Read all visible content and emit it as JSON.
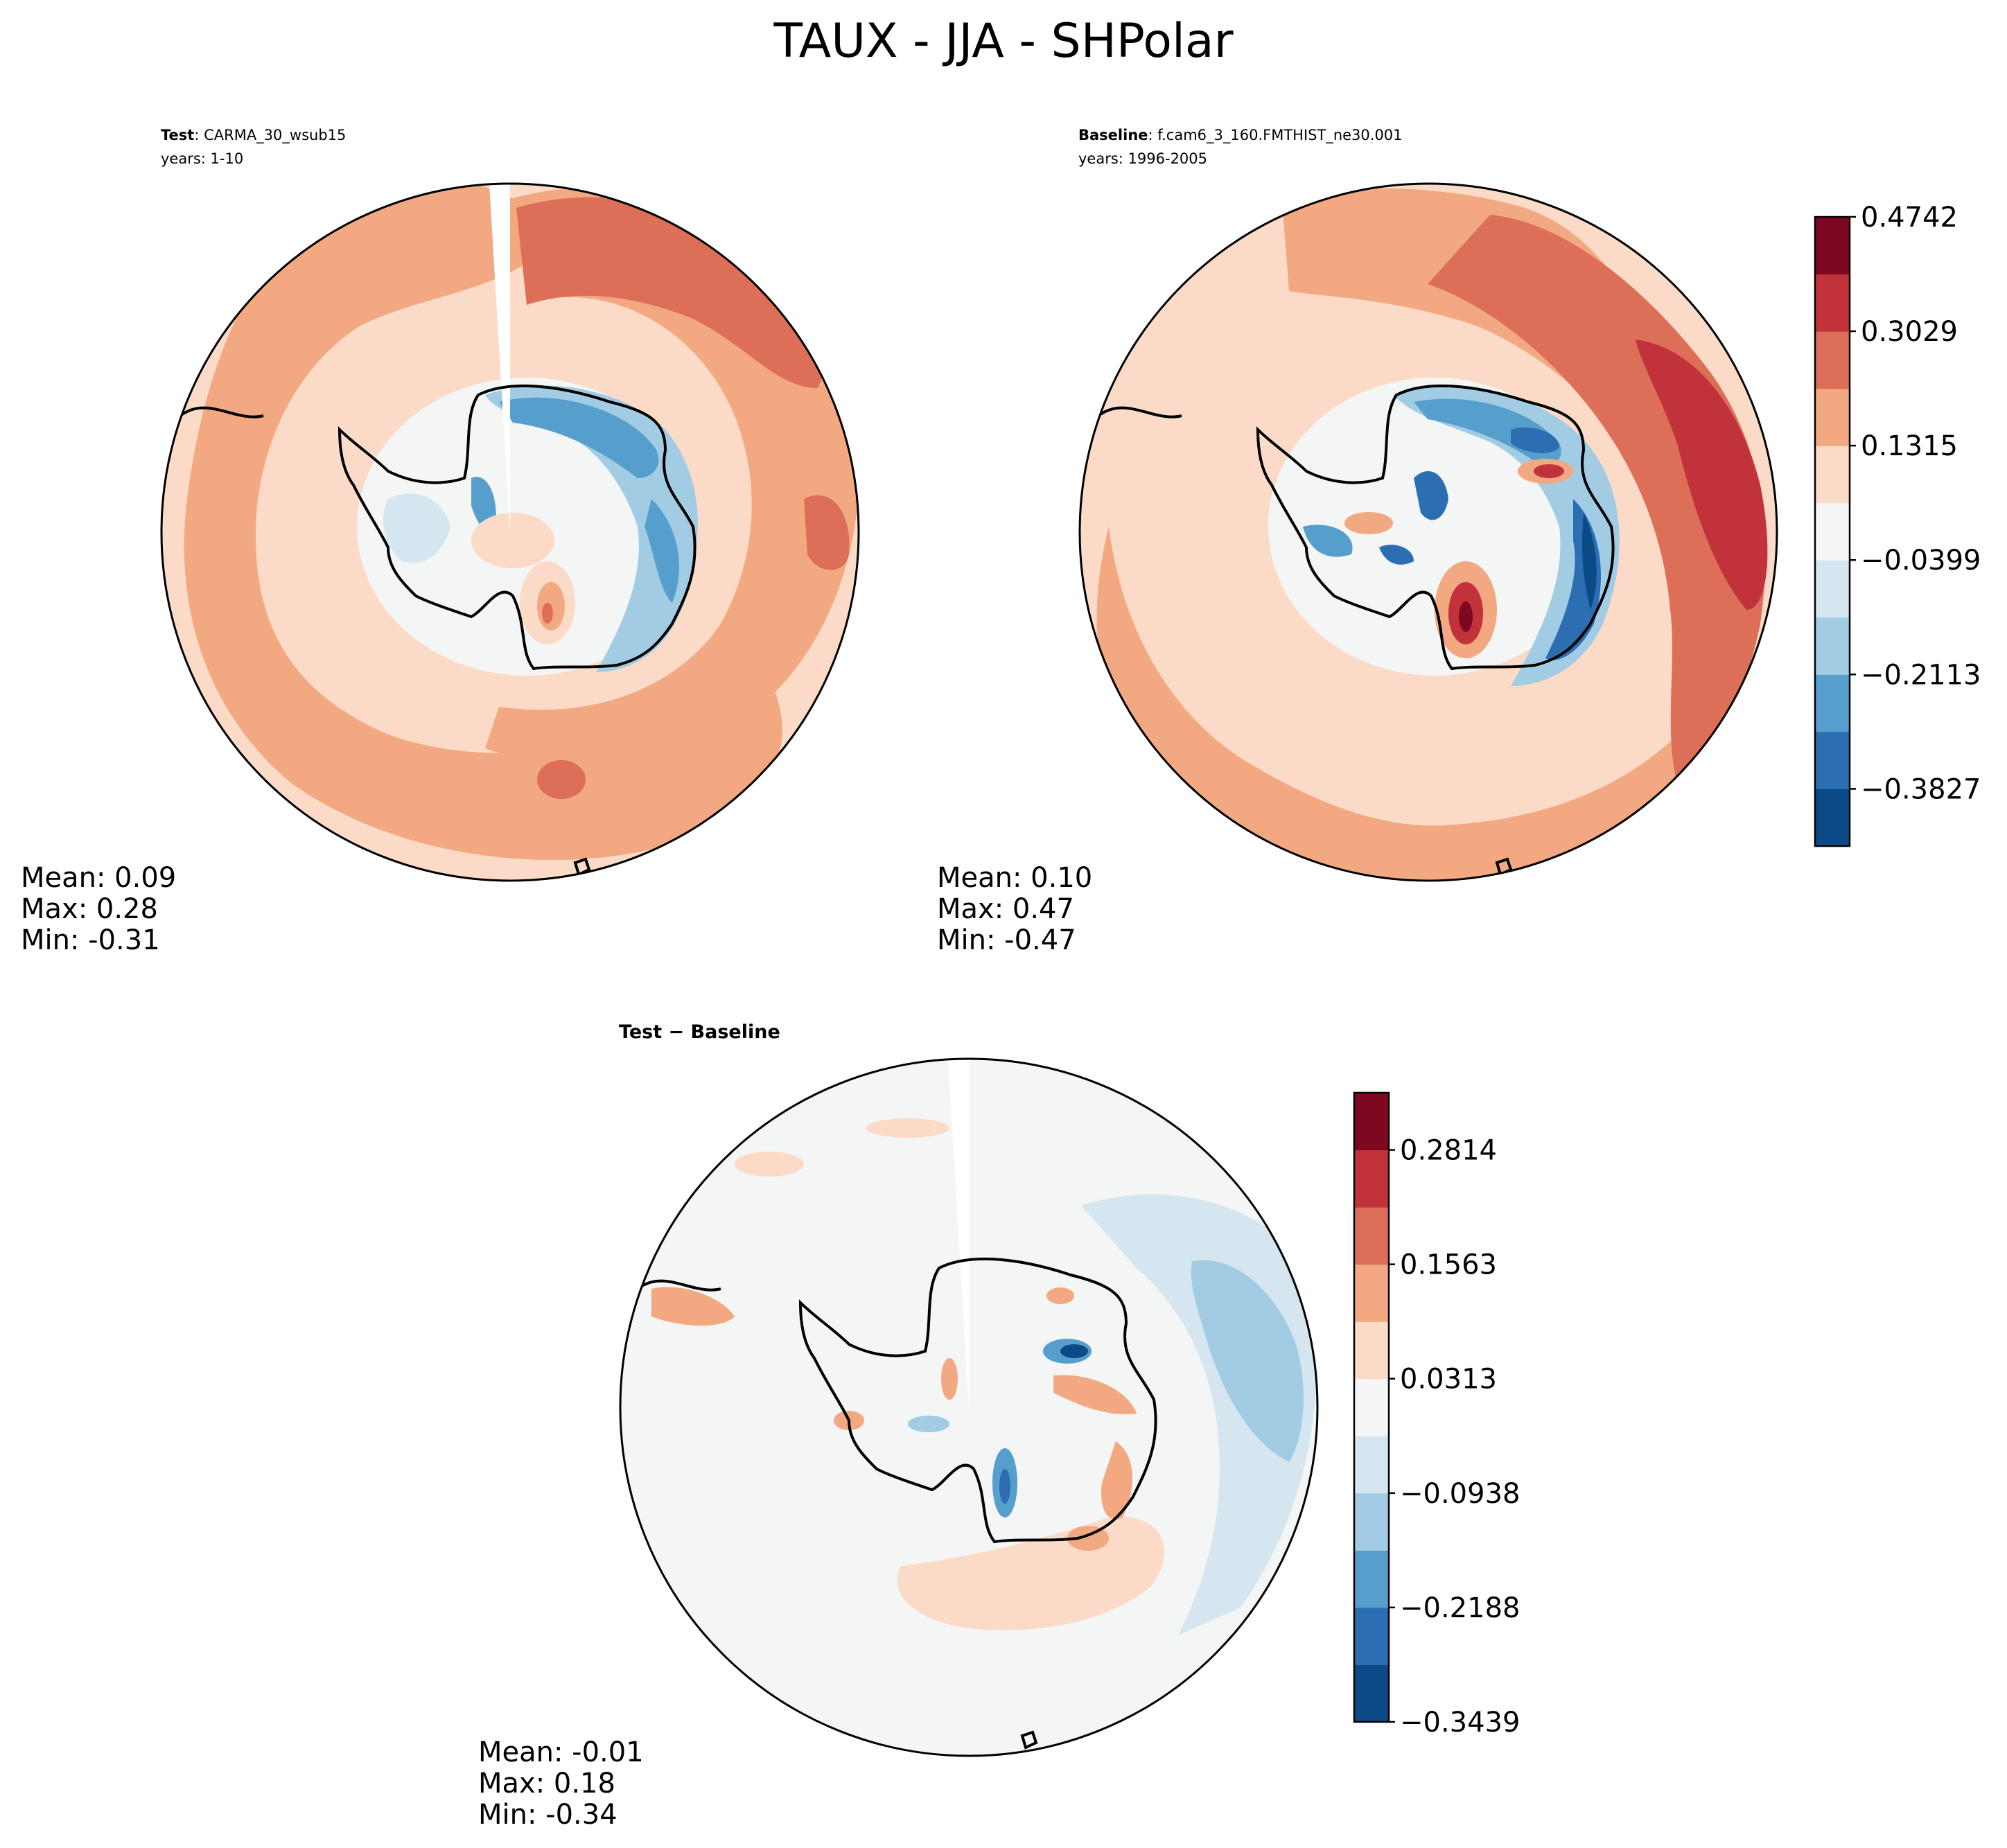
{
  "title": "TAUX - JJA - SHPolar",
  "panels": [
    {
      "id": "test",
      "label_bold": "Test",
      "label_rest": ": CARMA_30_wsub15",
      "years": "years: 1-10",
      "stats": {
        "mean": "Mean:  0.09",
        "max": "Max:  0.28",
        "min": "Min: -0.31"
      }
    },
    {
      "id": "baseline",
      "label_bold": "Baseline",
      "label_rest": ": f.cam6_3_160.FMTHIST_ne30.001",
      "years": "years: 1996-2005",
      "stats": {
        "mean": "Mean:  0.10",
        "max": "Max:  0.47",
        "min": "Min: -0.47"
      }
    },
    {
      "id": "diff",
      "label_bold": "Test − Baseline",
      "label_rest": "",
      "years": "",
      "stats": {
        "mean": "Mean: -0.01",
        "max": "Max:  0.18",
        "min": "Min: -0.34"
      }
    }
  ],
  "colorbars": {
    "top": {
      "ticks": [
        "0.4742",
        "0.3029",
        "0.1315",
        "−0.0399",
        "−0.2113",
        "−0.3827"
      ],
      "tick_values": [
        0.4742,
        0.3029,
        0.1315,
        -0.0399,
        -0.2113,
        -0.3827
      ],
      "range": [
        -0.4684,
        0.4742
      ],
      "colors": [
        "#0c4a87",
        "#2b6fb2",
        "#569fcc",
        "#a1cce3",
        "#d6e6f1",
        "#f4f5f5",
        "#fbdbc8",
        "#f2a880",
        "#dd6e57",
        "#c2323a",
        "#7e0822"
      ]
    },
    "bottom": {
      "ticks": [
        "0.2814",
        "0.1563",
        "0.0313",
        "−0.0938",
        "−0.2188",
        "−0.3439"
      ],
      "tick_values": [
        0.2814,
        0.1563,
        0.0313,
        -0.0938,
        -0.2188,
        -0.3439
      ],
      "range": [
        -0.3439,
        0.3439
      ],
      "colors": [
        "#0c4a87",
        "#2b6fb2",
        "#569fcc",
        "#a1cce3",
        "#d6e6f1",
        "#f4f5f5",
        "#fbdbc8",
        "#f2a880",
        "#dd6e57",
        "#c2323a",
        "#7e0822"
      ]
    }
  },
  "chart_data": [
    {
      "type": "heatmap",
      "title": "Test: CARMA_30_wsub15 (years: 1-10)",
      "projection": "south-polar stereographic",
      "variable": "TAUX",
      "season": "JJA",
      "stats": {
        "mean": 0.09,
        "max": 0.28,
        "min": -0.31
      },
      "colorbar": "top"
    },
    {
      "type": "heatmap",
      "title": "Baseline: f.cam6_3_160.FMTHIST_ne30.001 (years: 1996-2005)",
      "projection": "south-polar stereographic",
      "variable": "TAUX",
      "season": "JJA",
      "stats": {
        "mean": 0.1,
        "max": 0.47,
        "min": -0.47
      },
      "colorbar": "top"
    },
    {
      "type": "heatmap",
      "title": "Test − Baseline",
      "projection": "south-polar stereographic",
      "variable": "TAUX",
      "season": "JJA",
      "stats": {
        "mean": -0.01,
        "max": 0.18,
        "min": -0.34
      },
      "colorbar": "bottom"
    }
  ]
}
